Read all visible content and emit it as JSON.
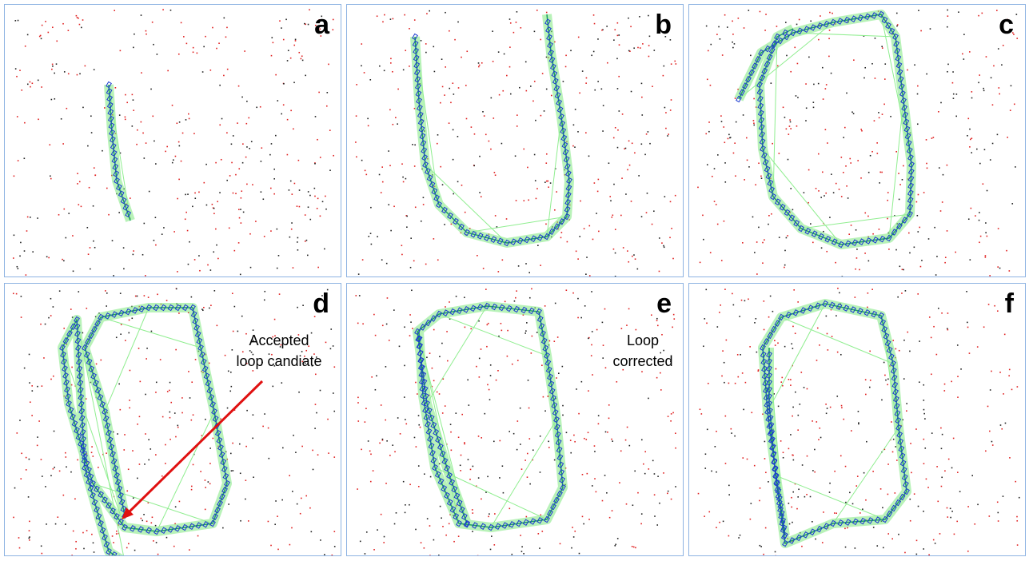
{
  "panels": [
    {
      "label": "a"
    },
    {
      "label": "b"
    },
    {
      "label": "c"
    },
    {
      "label": "d",
      "annotation": [
        "Accepted",
        "loop candiate"
      ]
    },
    {
      "label": "e",
      "annotation": [
        "Loop",
        "corrected"
      ]
    },
    {
      "label": "f"
    }
  ]
}
